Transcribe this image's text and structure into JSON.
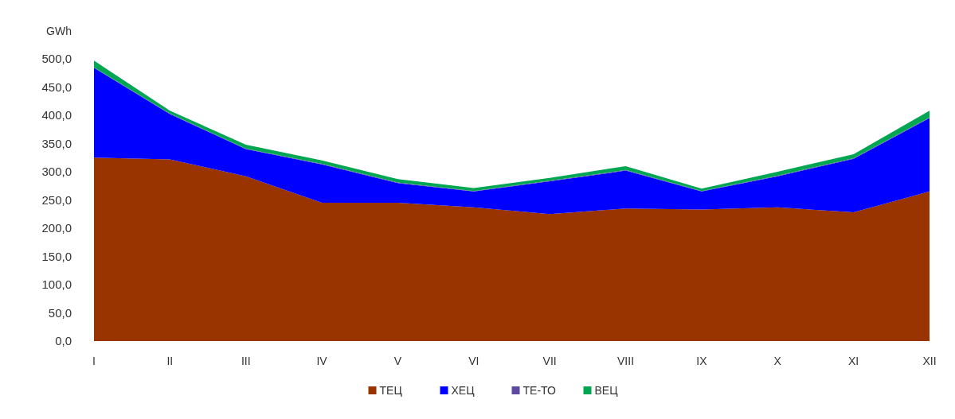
{
  "chart_data": {
    "type": "area",
    "stacked": true,
    "ylabel": "GWh",
    "categories": [
      "I",
      "II",
      "III",
      "IV",
      "V",
      "VI",
      "VII",
      "VIII",
      "IX",
      "X",
      "XI",
      "XII"
    ],
    "series": [
      {
        "name": "ТЕЦ",
        "color": "#993300",
        "values": [
          325,
          322,
          292,
          245,
          245,
          237,
          225,
          235,
          233,
          237,
          228,
          265
        ]
      },
      {
        "name": "ХЕЦ",
        "color": "#0000ff",
        "values": [
          159,
          80,
          48,
          68,
          35,
          28,
          58,
          67,
          32,
          55,
          95,
          130
        ]
      },
      {
        "name": "ТЕ-ТО",
        "color": "#5b4aa0",
        "values": [
          1,
          1,
          1,
          1,
          1,
          1,
          1,
          1,
          1,
          1,
          1,
          1
        ]
      },
      {
        "name": "ВЕЦ",
        "color": "#00a651",
        "values": [
          12,
          5,
          7,
          6,
          6,
          5,
          5,
          7,
          4,
          7,
          7,
          12
        ]
      }
    ],
    "ylim": [
      0,
      500
    ],
    "yticks": [
      {
        "value": 0,
        "label": "0,0"
      },
      {
        "value": 50,
        "label": "50,0"
      },
      {
        "value": 100,
        "label": "100,0"
      },
      {
        "value": 150,
        "label": "150,0"
      },
      {
        "value": 200,
        "label": "200,0"
      },
      {
        "value": 250,
        "label": "250,0"
      },
      {
        "value": 300,
        "label": "300,0"
      },
      {
        "value": 350,
        "label": "350,0"
      },
      {
        "value": 400,
        "label": "400,0"
      },
      {
        "value": 450,
        "label": "450,0"
      },
      {
        "value": 500,
        "label": "500,0"
      }
    ],
    "legend": "bottom"
  }
}
